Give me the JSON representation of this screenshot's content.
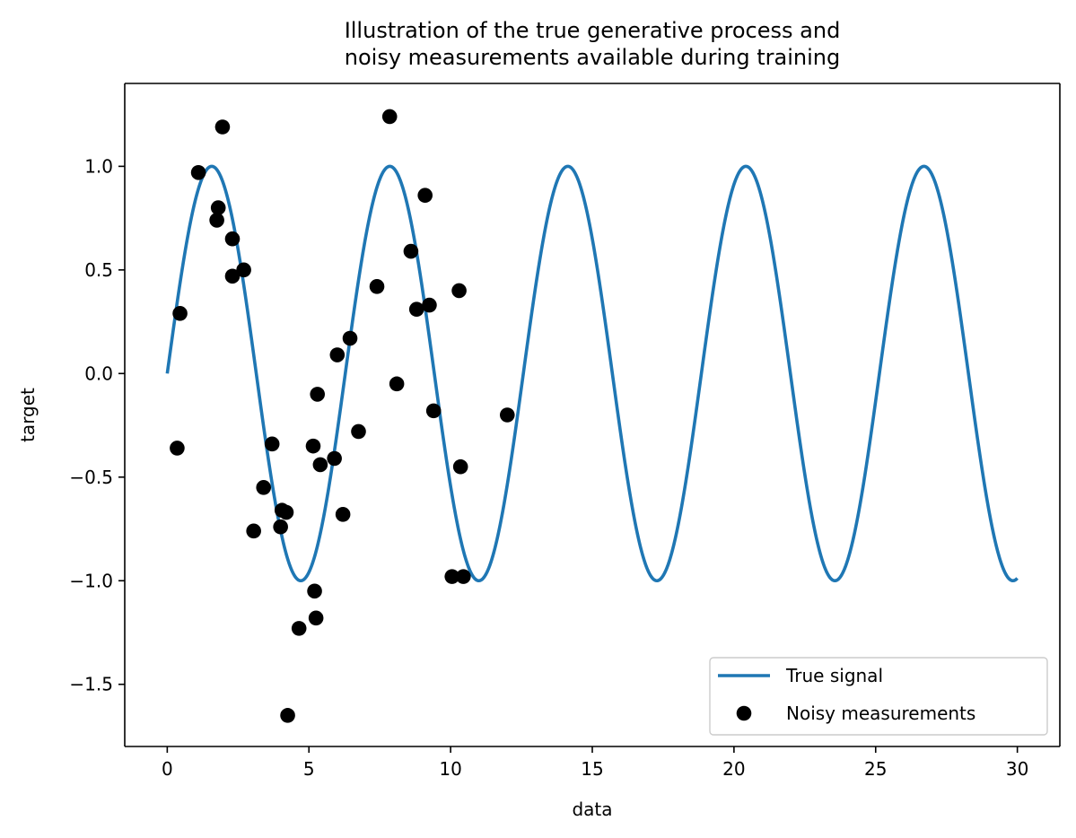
{
  "chart_data": {
    "type": "line",
    "title": "Illustration of the true generative process and\nnoisy measurements available during training",
    "xlabel": "data",
    "ylabel": "target",
    "xlim": [
      -1.5,
      31.5
    ],
    "ylim": [
      -1.8,
      1.4
    ],
    "x_ticks": [
      0,
      5,
      10,
      15,
      20,
      25,
      30
    ],
    "x_tick_labels": [
      "0",
      "5",
      "10",
      "15",
      "20",
      "25",
      "30"
    ],
    "y_ticks": [
      1.0,
      0.5,
      0.0,
      -0.5,
      -1.0,
      -1.5
    ],
    "y_tick_labels": [
      "1.0",
      "0.5",
      "0.0",
      "−0.5",
      "−1.0",
      "−1.5"
    ],
    "grid": false,
    "legend_position": "lower-right",
    "series": [
      {
        "name": "True signal",
        "kind": "line",
        "color": "#1f77b4",
        "function": "sin",
        "x_range": [
          0,
          30
        ]
      },
      {
        "name": "Noisy measurements",
        "kind": "scatter",
        "color": "#000000",
        "points": [
          [
            0.35,
            -0.36
          ],
          [
            0.45,
            0.29
          ],
          [
            1.1,
            0.97
          ],
          [
            1.75,
            0.74
          ],
          [
            1.8,
            0.8
          ],
          [
            1.95,
            1.19
          ],
          [
            2.3,
            0.65
          ],
          [
            2.3,
            0.47
          ],
          [
            2.7,
            0.5
          ],
          [
            3.05,
            -0.76
          ],
          [
            3.4,
            -0.55
          ],
          [
            3.7,
            -0.34
          ],
          [
            4.0,
            -0.74
          ],
          [
            4.05,
            -0.66
          ],
          [
            4.2,
            -0.67
          ],
          [
            4.25,
            -1.65
          ],
          [
            4.65,
            -1.23
          ],
          [
            5.15,
            -0.35
          ],
          [
            5.2,
            -1.05
          ],
          [
            5.25,
            -1.18
          ],
          [
            5.3,
            -0.1
          ],
          [
            5.4,
            -0.44
          ],
          [
            5.9,
            -0.41
          ],
          [
            6.0,
            0.09
          ],
          [
            6.2,
            -0.68
          ],
          [
            6.45,
            0.17
          ],
          [
            6.75,
            -0.28
          ],
          [
            7.4,
            0.42
          ],
          [
            7.85,
            1.24
          ],
          [
            8.1,
            -0.05
          ],
          [
            8.6,
            0.59
          ],
          [
            8.8,
            0.31
          ],
          [
            9.1,
            0.86
          ],
          [
            9.25,
            0.33
          ],
          [
            9.4,
            -0.18
          ],
          [
            10.05,
            -0.98
          ],
          [
            10.3,
            0.4
          ],
          [
            10.35,
            -0.45
          ],
          [
            10.45,
            -0.98
          ],
          [
            12.0,
            -0.2
          ]
        ]
      }
    ]
  }
}
